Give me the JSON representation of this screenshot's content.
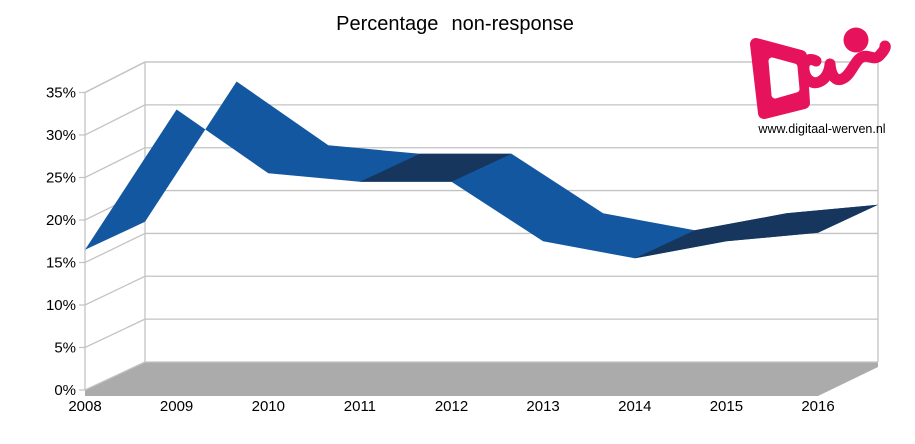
{
  "title": "Percentage non-response",
  "logo": {
    "name": "digitaal-werven-logo",
    "url_text": "www.digitaal-werven.nl",
    "color": "#E6135C"
  },
  "colors": {
    "ribbon_blue": "#1257A0",
    "ribbon_dark_blue": "#17365E",
    "floor_gray": "#ABABAB",
    "grid_gray": "#C3C3C3",
    "text_black": "#000000"
  },
  "chart_data": {
    "type": "line",
    "style": "3d-ribbon",
    "title": "Percentage non-response",
    "categories": [
      "2008",
      "2009",
      "2010",
      "2011",
      "2012",
      "2013",
      "2014",
      "2015",
      "2016"
    ],
    "series": [
      {
        "name": "Percentage non-response",
        "values": [
          16.5,
          33,
          25.5,
          24.5,
          24.5,
          17.5,
          15.5,
          17.5,
          18.5
        ]
      }
    ],
    "xlabel": "",
    "ylabel": "",
    "ylim": [
      0,
      35
    ],
    "ytick_step": 5,
    "ytick_labels": [
      "0%",
      "5%",
      "10%",
      "15%",
      "20%",
      "25%",
      "30%",
      "35%"
    ],
    "grid": true,
    "legend": false,
    "dark_segments": [
      3,
      6,
      7
    ]
  }
}
